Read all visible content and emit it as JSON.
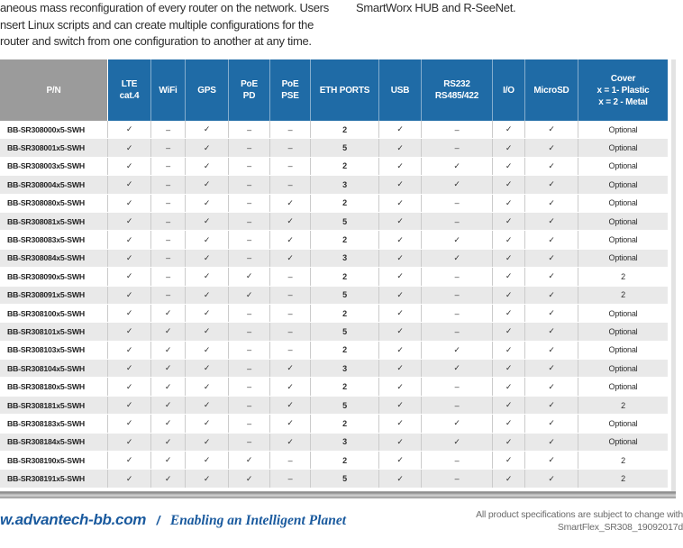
{
  "intro": {
    "left_lines": [
      "aneous mass reconfiguration of every router on the network. Users",
      "nsert Linux scripts and can create multiple configurations for the",
      "router and switch from one configuration to another at any time."
    ],
    "right_text": "SmartWorx HUB and R-SeeNet."
  },
  "table": {
    "columns": [
      "P/N",
      "LTE\ncat.4",
      "WiFi",
      "GPS",
      "PoE\nPD",
      "PoE\nPSE",
      "ETH PORTS",
      "USB",
      "RS232\nRS485/422",
      "I/O",
      "MicroSD",
      "Cover\nx = 1- Plastic\nx = 2 - Metal"
    ],
    "check_symbol": "✓",
    "dash_symbol": "–",
    "rows": [
      [
        "BB-SR308000x5-SWH",
        "✓",
        "–",
        "✓",
        "–",
        "–",
        "2",
        "✓",
        "–",
        "✓",
        "✓",
        "Optional"
      ],
      [
        "BB-SR308001x5-SWH",
        "✓",
        "–",
        "✓",
        "–",
        "–",
        "5",
        "✓",
        "–",
        "✓",
        "✓",
        "Optional"
      ],
      [
        "BB-SR308003x5-SWH",
        "✓",
        "–",
        "✓",
        "–",
        "–",
        "2",
        "✓",
        "✓",
        "✓",
        "✓",
        "Optional"
      ],
      [
        "BB-SR308004x5-SWH",
        "✓",
        "–",
        "✓",
        "–",
        "–",
        "3",
        "✓",
        "✓",
        "✓",
        "✓",
        "Optional"
      ],
      [
        "BB-SR308080x5-SWH",
        "✓",
        "–",
        "✓",
        "–",
        "✓",
        "2",
        "✓",
        "–",
        "✓",
        "✓",
        "Optional"
      ],
      [
        "BB-SR308081x5-SWH",
        "✓",
        "–",
        "✓",
        "–",
        "✓",
        "5",
        "✓",
        "–",
        "✓",
        "✓",
        "Optional"
      ],
      [
        "BB-SR308083x5-SWH",
        "✓",
        "–",
        "✓",
        "–",
        "✓",
        "2",
        "✓",
        "✓",
        "✓",
        "✓",
        "Optional"
      ],
      [
        "BB-SR308084x5-SWH",
        "✓",
        "–",
        "✓",
        "–",
        "✓",
        "3",
        "✓",
        "✓",
        "✓",
        "✓",
        "Optional"
      ],
      [
        "BB-SR308090x5-SWH",
        "✓",
        "–",
        "✓",
        "✓",
        "–",
        "2",
        "✓",
        "–",
        "✓",
        "✓",
        "2"
      ],
      [
        "BB-SR308091x5-SWH",
        "✓",
        "–",
        "✓",
        "✓",
        "–",
        "5",
        "✓",
        "–",
        "✓",
        "✓",
        "2"
      ],
      [
        "BB-SR308100x5-SWH",
        "✓",
        "✓",
        "✓",
        "–",
        "–",
        "2",
        "✓",
        "–",
        "✓",
        "✓",
        "Optional"
      ],
      [
        "BB-SR308101x5-SWH",
        "✓",
        "✓",
        "✓",
        "–",
        "–",
        "5",
        "✓",
        "–",
        "✓",
        "✓",
        "Optional"
      ],
      [
        "BB-SR308103x5-SWH",
        "✓",
        "✓",
        "✓",
        "–",
        "–",
        "2",
        "✓",
        "✓",
        "✓",
        "✓",
        "Optional"
      ],
      [
        "BB-SR308104x5-SWH",
        "✓",
        "✓",
        "✓",
        "–",
        "✓",
        "3",
        "✓",
        "✓",
        "✓",
        "✓",
        "Optional"
      ],
      [
        "BB-SR308180x5-SWH",
        "✓",
        "✓",
        "✓",
        "–",
        "✓",
        "2",
        "✓",
        "–",
        "✓",
        "✓",
        "Optional"
      ],
      [
        "BB-SR308181x5-SWH",
        "✓",
        "✓",
        "✓",
        "–",
        "✓",
        "5",
        "✓",
        "–",
        "✓",
        "✓",
        "2"
      ],
      [
        "BB-SR308183x5-SWH",
        "✓",
        "✓",
        "✓",
        "–",
        "✓",
        "2",
        "✓",
        "✓",
        "✓",
        "✓",
        "Optional"
      ],
      [
        "BB-SR308184x5-SWH",
        "✓",
        "✓",
        "✓",
        "–",
        "✓",
        "3",
        "✓",
        "✓",
        "✓",
        "✓",
        "Optional"
      ],
      [
        "BB-SR308190x5-SWH",
        "✓",
        "✓",
        "✓",
        "✓",
        "–",
        "2",
        "✓",
        "–",
        "✓",
        "✓",
        "2"
      ],
      [
        "BB-SR308191x5-SWH",
        "✓",
        "✓",
        "✓",
        "✓",
        "–",
        "5",
        "✓",
        "–",
        "✓",
        "✓",
        "2"
      ]
    ]
  },
  "footer": {
    "website": "w.advantech-bb.com",
    "separator": "/",
    "tagline": "Enabling an Intelligent Planet",
    "note_line1": "All product specifications are subject to change with",
    "note_line2": "SmartFlex_SR308_19092017d"
  },
  "colors": {
    "header_blue": "#1f6ba6",
    "header_gray": "#9b9b9b",
    "row_alt_gray": "#e9e9e9",
    "footer_blue": "#1a5a9e",
    "note_gray": "#6b6b6b"
  }
}
